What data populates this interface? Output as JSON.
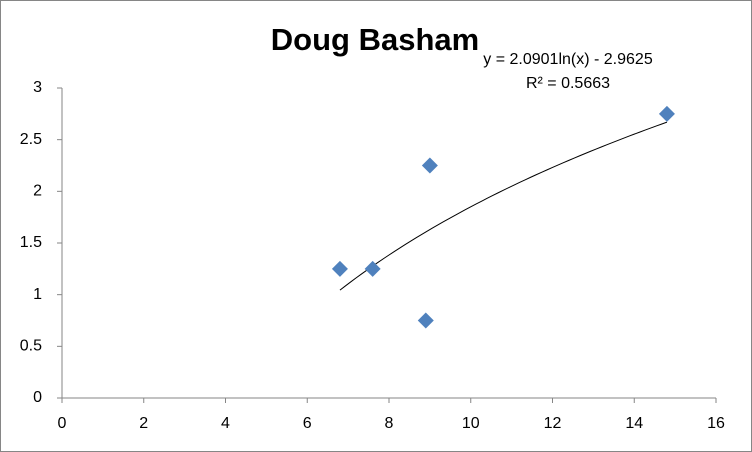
{
  "chart_data": {
    "type": "scatter",
    "title": "Doug Basham",
    "x": [
      6.8,
      7.6,
      9,
      8.9,
      14.8
    ],
    "values": [
      1.25,
      1.25,
      2.25,
      0.75,
      2.75
    ],
    "color": "#4f81bd",
    "xlim": [
      0,
      16
    ],
    "xticks": [
      0,
      2,
      4,
      6,
      8,
      10,
      12,
      14,
      16
    ],
    "ylim": [
      0,
      3
    ],
    "yticks": [
      0,
      0.5,
      1,
      1.5,
      2,
      2.5,
      3
    ],
    "grid": false,
    "trendline": {
      "type": "log",
      "a": 2.0901,
      "b": -2.9625,
      "color": "#000000",
      "equation": "y = 2.0901ln(x) - 2.9625",
      "r_squared": "R² = 0.5663"
    }
  }
}
